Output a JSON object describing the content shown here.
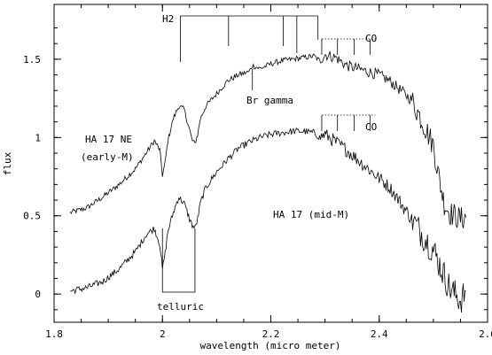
{
  "chart_data": {
    "type": "line",
    "xlabel": "wavelength (micro meter)",
    "ylabel": "flux",
    "xlim": [
      1.8,
      2.6
    ],
    "ylim": [
      -0.18,
      1.85
    ],
    "x_ticks": [
      {
        "value": 1.8,
        "label": "1.8"
      },
      {
        "value": 2.0,
        "label": "2"
      },
      {
        "value": 2.2,
        "label": "2.2"
      },
      {
        "value": 2.4,
        "label": "2.4"
      },
      {
        "value": 2.6,
        "label": "2.6"
      }
    ],
    "y_ticks": [
      {
        "value": 0,
        "label": "0"
      },
      {
        "value": 0.5,
        "label": "0.5"
      },
      {
        "value": 1.0,
        "label": "1"
      },
      {
        "value": 1.5,
        "label": "1.5"
      }
    ],
    "series": [
      {
        "name": "HA 17 NE (early-M)",
        "x": [
          1.83,
          1.86,
          1.89,
          1.92,
          1.95,
          1.97,
          1.985,
          1.995,
          2.0,
          2.005,
          2.01,
          2.02,
          2.03,
          2.04,
          2.05,
          2.055,
          2.06,
          2.065,
          2.07,
          2.08,
          2.1,
          2.12,
          2.14,
          2.16,
          2.166,
          2.18,
          2.2,
          2.22,
          2.24,
          2.26,
          2.28,
          2.29,
          2.3,
          2.32,
          2.34,
          2.36,
          2.38,
          2.4,
          2.42,
          2.44,
          2.46,
          2.48,
          2.5,
          2.51,
          2.52,
          2.53,
          2.54,
          2.55,
          2.56
        ],
        "y": [
          0.52,
          0.55,
          0.62,
          0.7,
          0.8,
          0.9,
          0.98,
          0.92,
          0.76,
          0.84,
          0.98,
          1.12,
          1.2,
          1.18,
          1.05,
          0.98,
          0.96,
          1.02,
          1.12,
          1.2,
          1.28,
          1.36,
          1.4,
          1.42,
          1.46,
          1.44,
          1.47,
          1.49,
          1.5,
          1.51,
          1.52,
          1.49,
          1.53,
          1.51,
          1.46,
          1.44,
          1.42,
          1.4,
          1.36,
          1.3,
          1.24,
          1.1,
          0.95,
          0.75,
          0.58,
          0.52,
          0.5,
          0.48,
          0.49
        ]
      },
      {
        "name": "HA 17 (mid-M)",
        "x": [
          1.83,
          1.86,
          1.89,
          1.92,
          1.95,
          1.97,
          1.985,
          1.995,
          2.0,
          2.005,
          2.01,
          2.02,
          2.03,
          2.04,
          2.05,
          2.055,
          2.06,
          2.065,
          2.07,
          2.08,
          2.1,
          2.12,
          2.14,
          2.16,
          2.18,
          2.2,
          2.22,
          2.24,
          2.26,
          2.28,
          2.29,
          2.3,
          2.32,
          2.34,
          2.36,
          2.38,
          2.4,
          2.42,
          2.44,
          2.46,
          2.48,
          2.5,
          2.51,
          2.52,
          2.53,
          2.54,
          2.55,
          2.56
        ],
        "y": [
          0.02,
          0.04,
          0.08,
          0.16,
          0.27,
          0.38,
          0.42,
          0.32,
          0.16,
          0.26,
          0.4,
          0.52,
          0.62,
          0.58,
          0.48,
          0.44,
          0.42,
          0.48,
          0.58,
          0.68,
          0.78,
          0.86,
          0.93,
          0.97,
          1.0,
          1.02,
          1.03,
          1.04,
          1.04,
          1.03,
          1.0,
          1.02,
          0.97,
          0.92,
          0.86,
          0.8,
          0.74,
          0.68,
          0.58,
          0.48,
          0.38,
          0.28,
          0.2,
          0.12,
          0.04,
          0.0,
          -0.04,
          0.02
        ]
      }
    ],
    "annotations": {
      "h2_label": "H2",
      "h2_lines": [
        2.033,
        2.122,
        2.223,
        2.248,
        2.287
      ],
      "co_label_upper": "CO",
      "co_label_lower": "CO",
      "co_lines": [
        2.294,
        2.323,
        2.354,
        2.383
      ],
      "br_gamma_label": "Br gamma",
      "br_gamma_x": 2.166,
      "telluric_label": "telluric",
      "telluric_range": [
        2.0,
        2.06
      ],
      "series_label_upper_line1": "HA 17 NE",
      "series_label_upper_line2": "(early-M)",
      "series_label_lower": "HA 17 (mid-M)"
    }
  }
}
